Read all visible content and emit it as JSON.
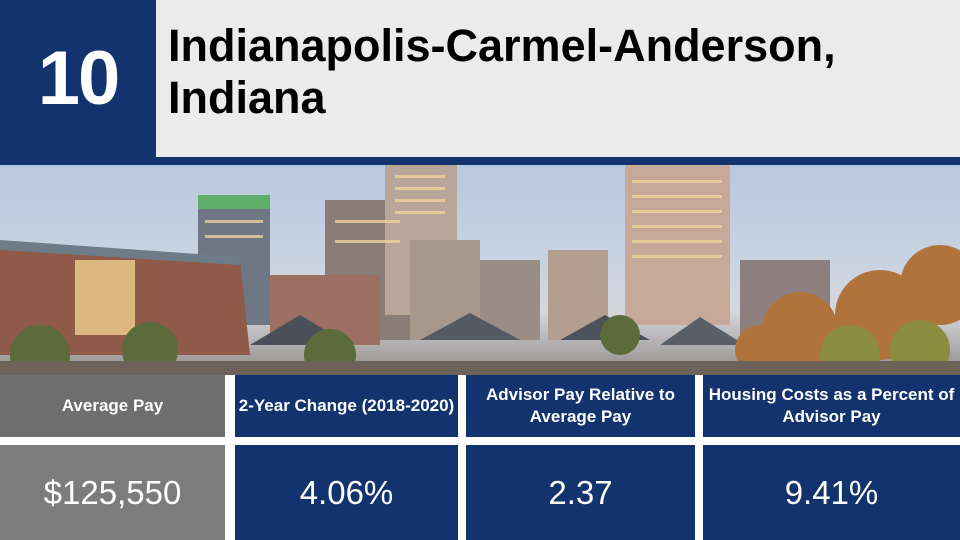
{
  "rank": "10",
  "title": "Indianapolis-Carmel-Anderson, Indiana",
  "photo": {
    "subject": "city skyline at dusk"
  },
  "colors": {
    "navy": "#12336e",
    "grey": "#6e6e6e",
    "title_bg": "#ebebeb"
  },
  "stats": [
    {
      "header": "Average Pay",
      "value": "$125,550"
    },
    {
      "header": "2-Year Change (2018-2020)",
      "value": "4.06%"
    },
    {
      "header": "Advisor Pay Relative to Average Pay",
      "value": "2.37"
    },
    {
      "header": "Housing Costs as a Percent of Advisor Pay",
      "value": "9.41%"
    }
  ]
}
